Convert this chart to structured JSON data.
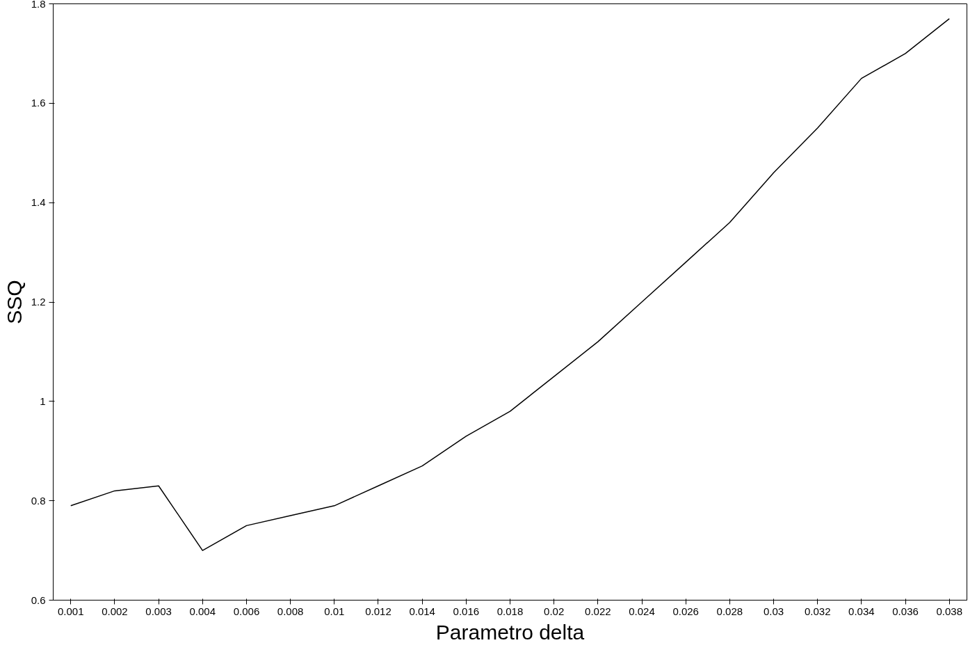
{
  "chart_data": {
    "type": "line",
    "xlabel": "Parametro delta",
    "ylabel": "SSQ",
    "categories": [
      "0.001",
      "0.002",
      "0.003",
      "0.004",
      "0.006",
      "0.008",
      "0.01",
      "0.012",
      "0.014",
      "0.016",
      "0.018",
      "0.02",
      "0.022",
      "0.024",
      "0.026",
      "0.028",
      "0.03",
      "0.032",
      "0.034",
      "0.036",
      "0.038"
    ],
    "series": [
      {
        "color": "#000000",
        "values": [
          0.79,
          0.82,
          0.83,
          0.7,
          0.75,
          0.77,
          0.79,
          0.83,
          0.87,
          0.93,
          0.98,
          1.05,
          1.12,
          1.2,
          1.28,
          1.36,
          1.46,
          1.55,
          1.65,
          1.7,
          1.77
        ]
      }
    ],
    "ylim": [
      0.6,
      1.8
    ],
    "yticks": [
      0.6,
      0.8,
      1,
      1.2,
      1.4,
      1.6,
      1.8
    ],
    "grid": false,
    "marker": "none",
    "line_style": "solid"
  }
}
